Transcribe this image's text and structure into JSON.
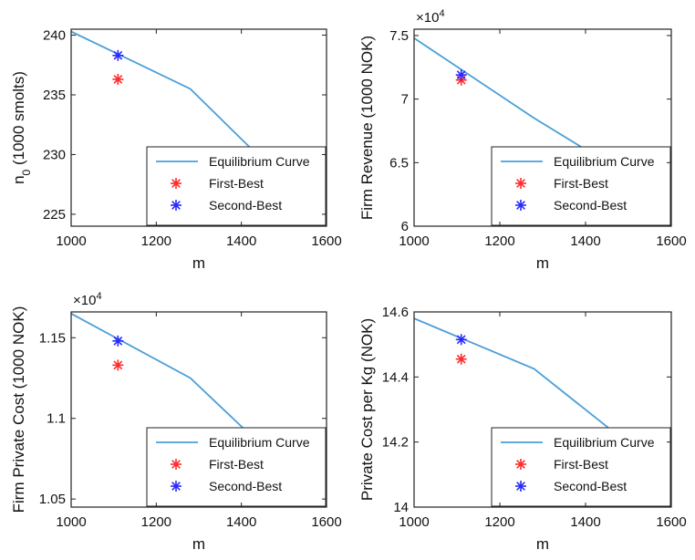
{
  "chart_data": [
    {
      "type": "line",
      "xlabel": "m",
      "ylabel": "n_0 (1000 smolts)",
      "exponent": "",
      "xlim": [
        1000,
        1600
      ],
      "ylim": [
        224,
        240.5
      ],
      "xticks": [
        1000,
        1200,
        1400,
        1600
      ],
      "xtick_labels": [
        "1000",
        "1200",
        "1400",
        "1600"
      ],
      "yticks": [
        225,
        230,
        235,
        240
      ],
      "ytick_labels": [
        "225",
        "230",
        "235",
        "240"
      ],
      "series": [
        {
          "name": "Equilibrium Curve",
          "kind": "line",
          "color": "#4a9fd8",
          "x": [
            1000,
            1280,
            1600
          ],
          "y": [
            240.3,
            235.5,
            224.3
          ]
        },
        {
          "name": "First-Best",
          "kind": "marker",
          "color": "#ff2b2b",
          "x": [
            1110
          ],
          "y": [
            236.3
          ]
        },
        {
          "name": "Second-Best",
          "kind": "marker",
          "color": "#2a2aff",
          "x": [
            1110
          ],
          "y": [
            238.3
          ]
        }
      ],
      "legend": {
        "position": "bottom-right",
        "entries": [
          "Equilibrium Curve",
          "First-Best",
          "Second-Best"
        ]
      },
      "grid": false
    },
    {
      "type": "line",
      "xlabel": "m",
      "ylabel": "Firm Revenue (1000 NOK)",
      "exponent": "×10",
      "exponent_power": "4",
      "xlim": [
        1000,
        1600
      ],
      "ylim": [
        6.0,
        7.55
      ],
      "xticks": [
        1000,
        1200,
        1400,
        1600
      ],
      "xtick_labels": [
        "1000",
        "1200",
        "1400",
        "1600"
      ],
      "yticks": [
        6.0,
        6.5,
        7.0,
        7.5
      ],
      "ytick_labels": [
        "6",
        "6.5",
        "7",
        "7.5"
      ],
      "series": [
        {
          "name": "Equilibrium Curve",
          "kind": "line",
          "color": "#4a9fd8",
          "x": [
            1000,
            1280,
            1600
          ],
          "y": [
            7.48,
            6.85,
            6.19
          ]
        },
        {
          "name": "First-Best",
          "kind": "marker",
          "color": "#ff2b2b",
          "x": [
            1110
          ],
          "y": [
            7.15
          ]
        },
        {
          "name": "Second-Best",
          "kind": "marker",
          "color": "#2a2aff",
          "x": [
            1110
          ],
          "y": [
            7.19
          ]
        }
      ],
      "legend": {
        "position": "bottom-right",
        "entries": [
          "Equilibrium Curve",
          "First-Best",
          "Second-Best"
        ]
      },
      "grid": false
    },
    {
      "type": "line",
      "xlabel": "m",
      "ylabel": "Firm Private Cost (1000 NOK)",
      "exponent": "×10",
      "exponent_power": "4",
      "xlim": [
        1000,
        1600
      ],
      "ylim": [
        1.045,
        1.166
      ],
      "xticks": [
        1000,
        1200,
        1400,
        1600
      ],
      "xtick_labels": [
        "1000",
        "1200",
        "1400",
        "1600"
      ],
      "yticks": [
        1.05,
        1.1,
        1.15
      ],
      "ytick_labels": [
        "1.05",
        "1.1",
        "1.15"
      ],
      "series": [
        {
          "name": "Equilibrium Curve",
          "kind": "line",
          "color": "#4a9fd8",
          "x": [
            1000,
            1280,
            1600
          ],
          "y": [
            1.165,
            1.125,
            1.045
          ]
        },
        {
          "name": "First-Best",
          "kind": "marker",
          "color": "#ff2b2b",
          "x": [
            1110
          ],
          "y": [
            1.133
          ]
        },
        {
          "name": "Second-Best",
          "kind": "marker",
          "color": "#2a2aff",
          "x": [
            1110
          ],
          "y": [
            1.148
          ]
        }
      ],
      "legend": {
        "position": "bottom-right",
        "entries": [
          "Equilibrium Curve",
          "First-Best",
          "Second-Best"
        ]
      },
      "grid": false
    },
    {
      "type": "line",
      "xlabel": "m",
      "ylabel": "Private Cost per Kg (NOK)",
      "exponent": "",
      "xlim": [
        1000,
        1600
      ],
      "ylim": [
        14.0,
        14.6
      ],
      "xticks": [
        1000,
        1200,
        1400,
        1600
      ],
      "xtick_labels": [
        "1000",
        "1200",
        "1400",
        "1600"
      ],
      "yticks": [
        14.0,
        14.2,
        14.4,
        14.6
      ],
      "ytick_labels": [
        "14",
        "14.2",
        "14.4",
        "14.6"
      ],
      "series": [
        {
          "name": "Equilibrium Curve",
          "kind": "line",
          "color": "#4a9fd8",
          "x": [
            1000,
            1280,
            1600
          ],
          "y": [
            14.58,
            14.425,
            14.09
          ]
        },
        {
          "name": "First-Best",
          "kind": "marker",
          "color": "#ff2b2b",
          "x": [
            1110
          ],
          "y": [
            14.455
          ]
        },
        {
          "name": "Second-Best",
          "kind": "marker",
          "color": "#2a2aff",
          "x": [
            1110
          ],
          "y": [
            14.515
          ]
        }
      ],
      "legend": {
        "position": "bottom-right",
        "entries": [
          "Equilibrium Curve",
          "First-Best",
          "Second-Best"
        ]
      },
      "grid": false
    }
  ]
}
